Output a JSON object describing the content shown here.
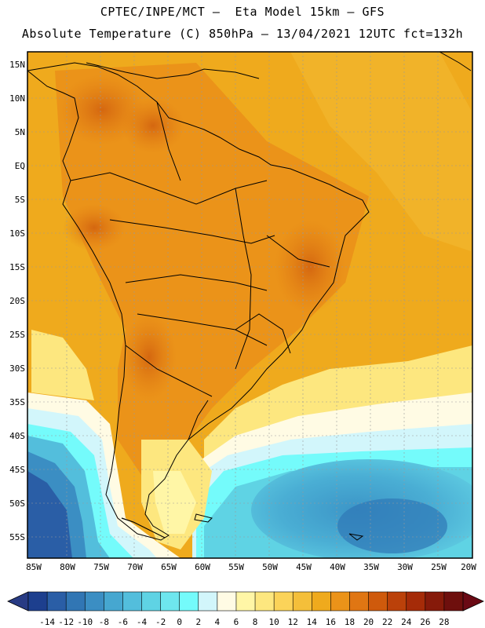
{
  "header": {
    "line1": "CPTEC/INPE/MCT –  Eta Model 15km – GFS",
    "line2": "Absolute Temperature (C) 850hPa – 13/04/2021 12UTC fct=132h"
  },
  "map": {
    "lat_labels": [
      "15N",
      "10N",
      "5N",
      "EQ",
      "5S",
      "10S",
      "15S",
      "20S",
      "25S",
      "30S",
      "35S",
      "40S",
      "45S",
      "50S",
      "55S"
    ],
    "lon_labels": [
      "85W",
      "80W",
      "75W",
      "70W",
      "65W",
      "60W",
      "55W",
      "50W",
      "45W",
      "40W",
      "35W",
      "30W",
      "25W",
      "20W"
    ]
  },
  "colorbar": {
    "labels": [
      "-14",
      "-12",
      "-10",
      "-8",
      "-6",
      "-4",
      "-2",
      "0",
      "2",
      "4",
      "6",
      "8",
      "10",
      "12",
      "14",
      "16",
      "18",
      "20",
      "22",
      "24",
      "26",
      "28"
    ],
    "colors": [
      "#1d3f8e",
      "#2a5ea6",
      "#3176b4",
      "#3b8ec3",
      "#46a7d0",
      "#53bedc",
      "#5fd3e4",
      "#6ee6ee",
      "#74fbfb",
      "#d2f6fb",
      "#fffbe4",
      "#fff6a6",
      "#fde77f",
      "#fbd359",
      "#f4bf3a",
      "#efaa1d",
      "#eb9319",
      "#e07613",
      "#cf5a0c",
      "#bb410a",
      "#a52b08",
      "#861a0a",
      "#6e0f0d"
    ],
    "left_cap_color": "#283b84",
    "right_cap_color": "#6a0914"
  }
}
